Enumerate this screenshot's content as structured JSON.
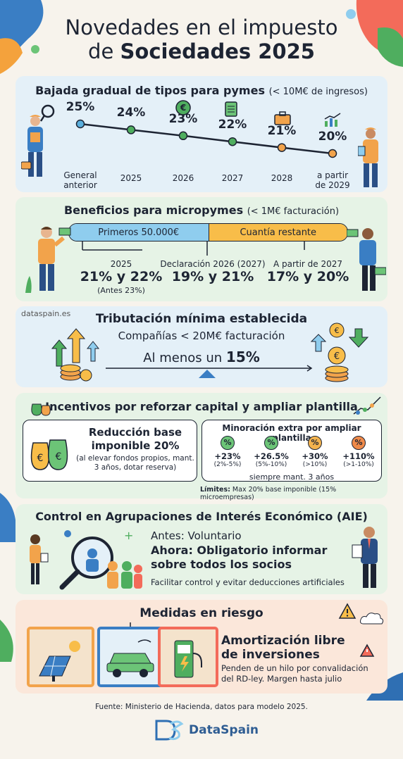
{
  "header": {
    "title_line1": "Novedades en el impuesto",
    "title_line2_prefix": "de ",
    "title_line2_bold": "Sociedades 2025"
  },
  "section1": {
    "title": "Bajada gradual de tipos para pymes",
    "subtitle": "(< 10M€ de ingresos)",
    "points": [
      {
        "rate": "25%",
        "label": "General\nanterior",
        "value": 25
      },
      {
        "rate": "24%",
        "label": "2025",
        "value": 24
      },
      {
        "rate": "23%",
        "label": "2026",
        "value": 23
      },
      {
        "rate": "22%",
        "label": "2027",
        "value": 22
      },
      {
        "rate": "21%",
        "label": "2028",
        "value": 21
      },
      {
        "rate": "20%",
        "label": "a partir\nde 2029",
        "value": 20
      }
    ]
  },
  "section2": {
    "title": "Beneficios para micropymes",
    "subtitle": "(< 1M€ facturación)",
    "bar_left": "Primeros 50.000€",
    "bar_right": "Cuantía restante",
    "col1_label": "2025",
    "col1_value": "21% y 22%",
    "col1_note": "(Antes 23%)",
    "col2_label": "Declaración 2026 (2027)",
    "col2_value": "19% y 21%",
    "col3_label": "A partir de 2027",
    "col3_value": "17% y 20%"
  },
  "section3": {
    "watermark": "dataspain.es",
    "title": "Tributación mínima establecida",
    "subtitle": "Compañías < 20M€ facturación",
    "line_prefix": "Al menos un ",
    "line_bold": "15%"
  },
  "section4": {
    "title": "Incentivos por reforzar capital y ampliar plantilla",
    "left_title": "Reducción base imponible 20%",
    "left_note": "(al elevar fondos propios, mant. 3 años, dotar reserva)",
    "right_title": "Minoración extra por ampliar plantilla",
    "items": [
      {
        "value": "+23%",
        "range": "(2%-5%)",
        "color": "#6cc477"
      },
      {
        "value": "+26.5%",
        "range": "(5%-10%)",
        "color": "#6cc477"
      },
      {
        "value": "+30%",
        "range": "(>10%)",
        "color": "#f3b34e"
      },
      {
        "value": "+110%",
        "range": "(>1-10%)",
        "color": "#ef8a4a"
      }
    ],
    "right_footer": "siempre mant. 3 años",
    "limits_label": "Límites:",
    "limits_text": " Max 20% base imponible (15% microempresas)"
  },
  "section5": {
    "title": "Control en Agrupaciones de Interés Económico (AIE)",
    "before": "Antes: Voluntario",
    "now": "Ahora: Obligatorio informar sobre todos los socios",
    "note": "Facilitar control y evitar deducciones artificiales"
  },
  "section6": {
    "title": "Medidas en riesgo",
    "headline": "Amortización libre de inversiones",
    "note": "Penden de un hilo por convalidación del RD-ley. Margen hasta julio"
  },
  "footer": {
    "source": "Fuente: Ministerio de Hacienda, datos para modelo 2025.",
    "brand": "DataSpain"
  },
  "colors": {
    "panel_blue": "#e4f0f8",
    "panel_green": "#e6f3e6",
    "panel_peach": "#fbe7da",
    "bar_blue": "#8fcdee",
    "bar_orange": "#f8bd49",
    "dot_blue": "#5aaedc",
    "dot_green": "#4fae5f",
    "dot_orange": "#f2a34b"
  }
}
